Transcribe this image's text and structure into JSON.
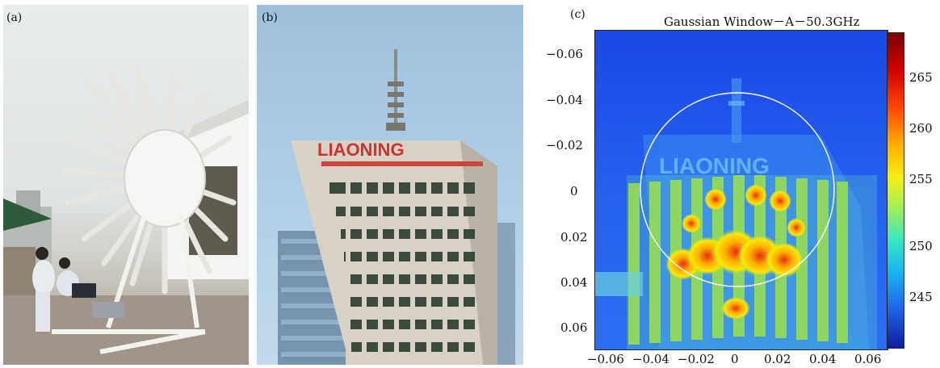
{
  "panels": {
    "a": {
      "label": "(a)"
    },
    "b": {
      "label": "(b)",
      "sign_text": "LIAONING"
    },
    "c": {
      "label": "(c)",
      "title": "Gaussian Window－A－50.3GHz",
      "y_ticks": [
        "−0.06",
        "−0.04",
        "−0.02",
        "0",
        "0.02",
        "0.04",
        "0.06"
      ],
      "x_ticks": [
        "−0.06",
        "−0.04",
        "−0.02",
        "0",
        "0.02",
        "0.04",
        "0.06"
      ],
      "colorbar_ticks": [
        "265",
        "260",
        "255",
        "250",
        "245"
      ],
      "overlay_text": "LIAONING"
    }
  }
}
